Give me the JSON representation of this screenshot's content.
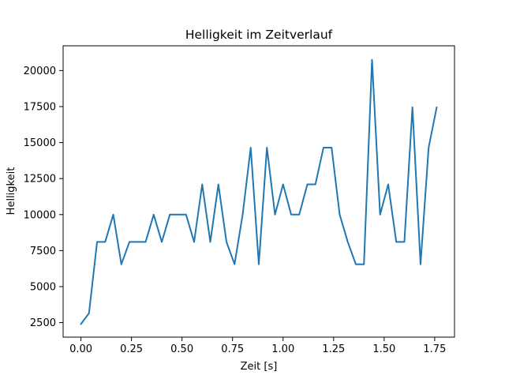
{
  "chart_data": {
    "type": "line",
    "title": "Helligkeit im Zeitverlauf",
    "xlabel": "Zeit [s]",
    "ylabel": "Helligkeit",
    "xlim": [
      -0.088,
      1.848
    ],
    "ylim": [
      1490,
      21720
    ],
    "grid": false,
    "x_ticks": [
      0.0,
      0.25,
      0.5,
      0.75,
      1.0,
      1.25,
      1.5,
      1.75
    ],
    "x_tick_labels": [
      "0.00",
      "0.25",
      "0.50",
      "0.75",
      "1.00",
      "1.25",
      "1.50",
      "1.75"
    ],
    "y_ticks": [
      2500,
      5000,
      7500,
      10000,
      12500,
      15000,
      17500,
      20000
    ],
    "y_tick_labels": [
      "2500",
      "5000",
      "7500",
      "10000",
      "12500",
      "15000",
      "17500",
      "20000"
    ],
    "series": [
      {
        "color": "#1f77b4",
        "x": [
          0.0,
          0.04,
          0.08,
          0.12,
          0.16,
          0.2,
          0.24,
          0.28,
          0.32,
          0.36,
          0.4,
          0.44,
          0.48,
          0.52,
          0.56,
          0.6,
          0.64,
          0.68,
          0.72,
          0.76,
          0.8,
          0.84,
          0.88,
          0.92,
          0.96,
          1.0,
          1.04,
          1.08,
          1.12,
          1.16,
          1.2,
          1.24,
          1.28,
          1.32,
          1.36,
          1.4,
          1.44,
          1.48,
          1.52,
          1.56,
          1.6,
          1.64,
          1.68,
          1.72,
          1.76
        ],
        "values": [
          2400,
          3150,
          8100,
          8100,
          10000,
          6550,
          8100,
          8100,
          8100,
          10000,
          8100,
          10000,
          10000,
          10000,
          8100,
          12100,
          8100,
          12100,
          8100,
          6550,
          10000,
          14650,
          6550,
          14650,
          10000,
          12100,
          10000,
          10000,
          12100,
          12100,
          14650,
          14650,
          10000,
          8100,
          6550,
          6550,
          20750,
          10000,
          12100,
          8100,
          8100,
          17450,
          6550,
          14650,
          17450
        ]
      }
    ]
  }
}
